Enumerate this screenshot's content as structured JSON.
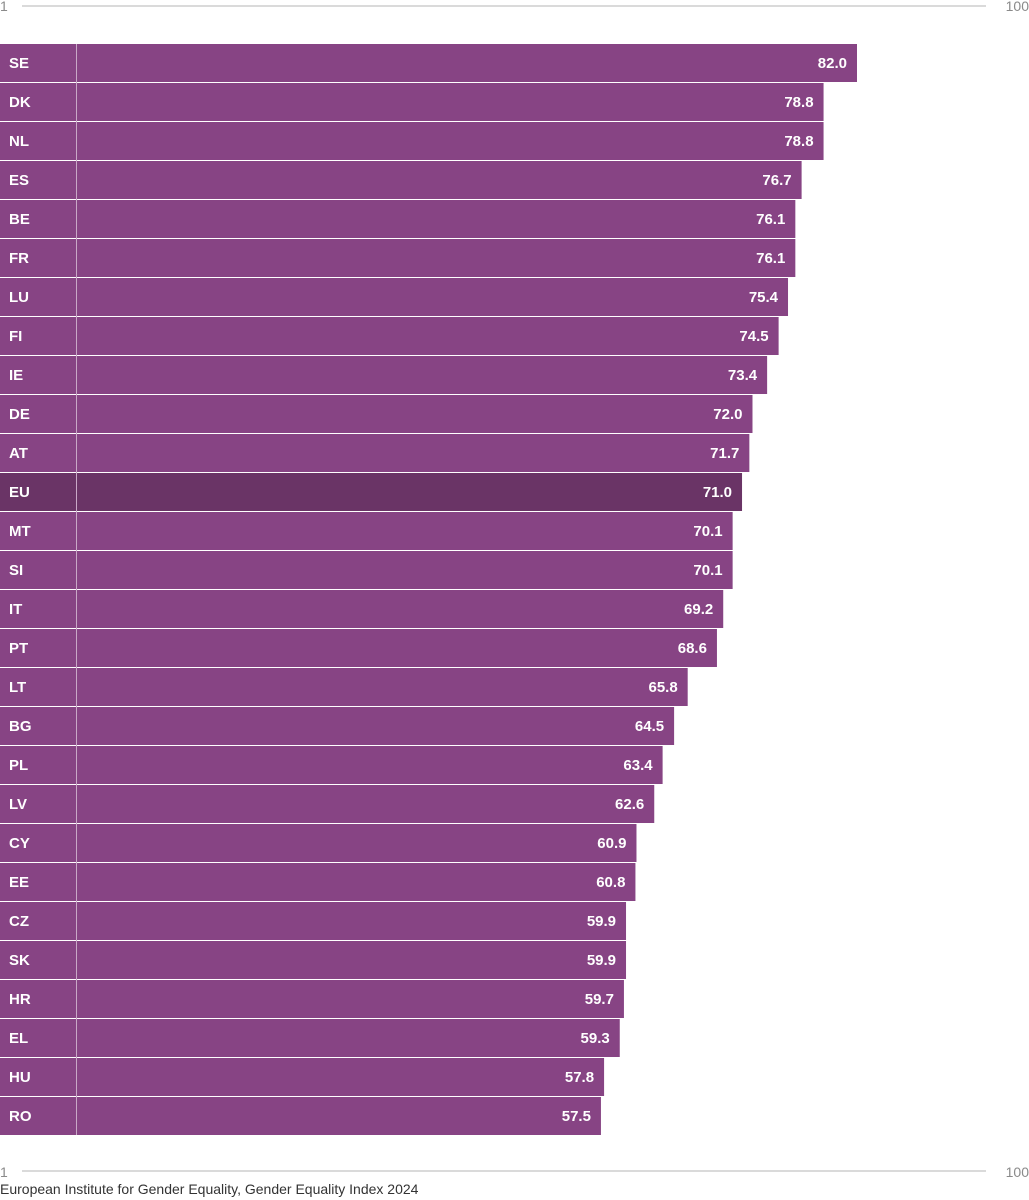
{
  "colors": {
    "bar": "#874484",
    "bar_highlight": "#6a3466",
    "axis_line": "#b5b5b5",
    "label_text": "#ffffff",
    "scale_text": "#8a8a8a"
  },
  "scale": {
    "min_label": "1",
    "max_label": "100"
  },
  "source": "European Institute for Gender Equality, Gender Equality Index 2024",
  "chart_data": {
    "type": "bar",
    "orientation": "horizontal",
    "xlim": [
      1,
      100
    ],
    "highlight": "EU",
    "categories": [
      "SE",
      "DK",
      "NL",
      "ES",
      "BE",
      "FR",
      "LU",
      "FI",
      "IE",
      "DE",
      "AT",
      "EU",
      "MT",
      "SI",
      "IT",
      "PT",
      "LT",
      "BG",
      "PL",
      "LV",
      "CY",
      "EE",
      "CZ",
      "SK",
      "HR",
      "EL",
      "HU",
      "RO"
    ],
    "values": [
      82.0,
      78.8,
      78.8,
      76.7,
      76.1,
      76.1,
      75.4,
      74.5,
      73.4,
      72.0,
      71.7,
      71.0,
      70.1,
      70.1,
      69.2,
      68.6,
      65.8,
      64.5,
      63.4,
      62.6,
      60.9,
      60.8,
      59.9,
      59.9,
      59.7,
      59.3,
      57.8,
      57.5
    ],
    "value_labels": [
      "82.0",
      "78.8",
      "78.8",
      "76.7",
      "76.1",
      "76.1",
      "75.4",
      "74.5",
      "73.4",
      "72.0",
      "71.7",
      "71.0",
      "70.1",
      "70.1",
      "69.2",
      "68.6",
      "65.8",
      "64.5",
      "63.4",
      "62.6",
      "60.9",
      "60.8",
      "59.9",
      "59.9",
      "59.7",
      "59.3",
      "57.8",
      "57.5"
    ]
  }
}
